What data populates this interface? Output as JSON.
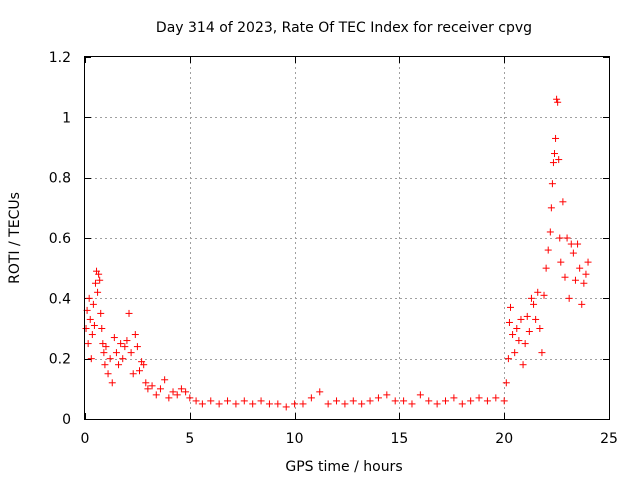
{
  "chart_data": {
    "type": "scatter",
    "title": "Day 314 of 2023, Rate Of TEC Index for receiver cpvg",
    "xlabel": "GPS time / hours",
    "ylabel": "ROTI / TECUs",
    "xlim": [
      0,
      25
    ],
    "ylim": [
      0,
      1.2
    ],
    "x_ticks": [
      0,
      5,
      10,
      15,
      20,
      25
    ],
    "x_tick_labels": [
      "0",
      "5",
      "10",
      "15",
      "20",
      "25"
    ],
    "y_ticks": [
      0,
      0.2,
      0.4,
      0.6,
      0.8,
      1.0,
      1.2
    ],
    "y_tick_labels": [
      "0",
      "0.2",
      "0.4",
      "0.6",
      "0.8",
      "1",
      "1.2"
    ],
    "grid": true,
    "marker": "+",
    "color": "#ff0000",
    "series": [
      {
        "points": [
          [
            0.05,
            0.3
          ],
          [
            0.1,
            0.36
          ],
          [
            0.15,
            0.25
          ],
          [
            0.2,
            0.4
          ],
          [
            0.25,
            0.33
          ],
          [
            0.3,
            0.2
          ],
          [
            0.35,
            0.28
          ],
          [
            0.4,
            0.38
          ],
          [
            0.45,
            0.31
          ],
          [
            0.5,
            0.45
          ],
          [
            0.55,
            0.49
          ],
          [
            0.6,
            0.42
          ],
          [
            0.65,
            0.48
          ],
          [
            0.7,
            0.46
          ],
          [
            0.75,
            0.35
          ],
          [
            0.8,
            0.3
          ],
          [
            0.85,
            0.25
          ],
          [
            0.9,
            0.22
          ],
          [
            0.95,
            0.18
          ],
          [
            1.0,
            0.24
          ],
          [
            1.1,
            0.15
          ],
          [
            1.2,
            0.2
          ],
          [
            1.3,
            0.12
          ],
          [
            1.4,
            0.27
          ],
          [
            1.5,
            0.22
          ],
          [
            1.6,
            0.18
          ],
          [
            1.7,
            0.25
          ],
          [
            1.8,
            0.2
          ],
          [
            1.9,
            0.24
          ],
          [
            2.0,
            0.26
          ],
          [
            2.1,
            0.35
          ],
          [
            2.2,
            0.22
          ],
          [
            2.3,
            0.15
          ],
          [
            2.4,
            0.28
          ],
          [
            2.5,
            0.24
          ],
          [
            2.6,
            0.16
          ],
          [
            2.7,
            0.19
          ],
          [
            2.8,
            0.18
          ],
          [
            2.9,
            0.12
          ],
          [
            3.0,
            0.1
          ],
          [
            3.2,
            0.11
          ],
          [
            3.4,
            0.08
          ],
          [
            3.6,
            0.1
          ],
          [
            3.8,
            0.13
          ],
          [
            4.0,
            0.07
          ],
          [
            4.2,
            0.09
          ],
          [
            4.4,
            0.08
          ],
          [
            4.6,
            0.1
          ],
          [
            4.8,
            0.09
          ],
          [
            5.0,
            0.07
          ],
          [
            5.3,
            0.06
          ],
          [
            5.6,
            0.05
          ],
          [
            6.0,
            0.06
          ],
          [
            6.4,
            0.05
          ],
          [
            6.8,
            0.06
          ],
          [
            7.2,
            0.05
          ],
          [
            7.6,
            0.06
          ],
          [
            8.0,
            0.05
          ],
          [
            8.4,
            0.06
          ],
          [
            8.8,
            0.05
          ],
          [
            9.2,
            0.05
          ],
          [
            9.6,
            0.04
          ],
          [
            10.0,
            0.05
          ],
          [
            10.4,
            0.05
          ],
          [
            10.8,
            0.07
          ],
          [
            11.2,
            0.09
          ],
          [
            11.6,
            0.05
          ],
          [
            12.0,
            0.06
          ],
          [
            12.4,
            0.05
          ],
          [
            12.8,
            0.06
          ],
          [
            13.2,
            0.05
          ],
          [
            13.6,
            0.06
          ],
          [
            14.0,
            0.07
          ],
          [
            14.4,
            0.08
          ],
          [
            14.8,
            0.06
          ],
          [
            15.2,
            0.06
          ],
          [
            15.6,
            0.05
          ],
          [
            16.0,
            0.08
          ],
          [
            16.4,
            0.06
          ],
          [
            16.8,
            0.05
          ],
          [
            17.2,
            0.06
          ],
          [
            17.6,
            0.07
          ],
          [
            18.0,
            0.05
          ],
          [
            18.4,
            0.06
          ],
          [
            18.8,
            0.07
          ],
          [
            19.2,
            0.06
          ],
          [
            19.6,
            0.07
          ],
          [
            20.0,
            0.06
          ],
          [
            20.1,
            0.12
          ],
          [
            20.2,
            0.2
          ],
          [
            20.25,
            0.32
          ],
          [
            20.3,
            0.37
          ],
          [
            20.4,
            0.28
          ],
          [
            20.5,
            0.22
          ],
          [
            20.6,
            0.3
          ],
          [
            20.7,
            0.26
          ],
          [
            20.8,
            0.33
          ],
          [
            20.9,
            0.18
          ],
          [
            21.0,
            0.25
          ],
          [
            21.1,
            0.34
          ],
          [
            21.2,
            0.29
          ],
          [
            21.3,
            0.4
          ],
          [
            21.4,
            0.38
          ],
          [
            21.5,
            0.33
          ],
          [
            21.6,
            0.42
          ],
          [
            21.7,
            0.3
          ],
          [
            21.8,
            0.22
          ],
          [
            21.9,
            0.41
          ],
          [
            22.0,
            0.5
          ],
          [
            22.1,
            0.56
          ],
          [
            22.2,
            0.62
          ],
          [
            22.25,
            0.7
          ],
          [
            22.3,
            0.78
          ],
          [
            22.35,
            0.85
          ],
          [
            22.4,
            0.88
          ],
          [
            22.45,
            0.93
          ],
          [
            22.5,
            1.06
          ],
          [
            22.55,
            1.05
          ],
          [
            22.6,
            0.86
          ],
          [
            22.65,
            0.6
          ],
          [
            22.7,
            0.52
          ],
          [
            22.8,
            0.72
          ],
          [
            22.9,
            0.47
          ],
          [
            23.0,
            0.6
          ],
          [
            23.1,
            0.4
          ],
          [
            23.2,
            0.58
          ],
          [
            23.3,
            0.55
          ],
          [
            23.4,
            0.46
          ],
          [
            23.5,
            0.58
          ],
          [
            23.6,
            0.5
          ],
          [
            23.7,
            0.38
          ],
          [
            23.8,
            0.45
          ],
          [
            23.9,
            0.48
          ],
          [
            24.0,
            0.52
          ]
        ]
      }
    ]
  }
}
